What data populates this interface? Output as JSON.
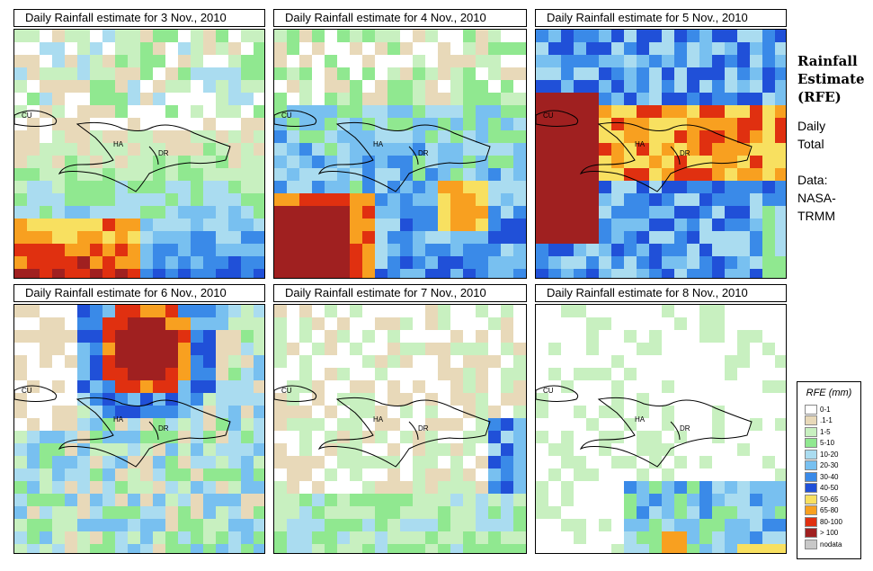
{
  "panels": [
    {
      "title": "Daily Rainfall estimate for  3 Nov., 2010",
      "pattern": "south"
    },
    {
      "title": "Daily Rainfall estimate for  4 Nov., 2010",
      "pattern": "southwest"
    },
    {
      "title": "Daily Rainfall estimate for  5 Nov., 2010",
      "pattern": "storm"
    },
    {
      "title": "Daily Rainfall estimate for  6 Nov., 2010",
      "pattern": "north"
    },
    {
      "title": "Daily Rainfall estimate for  7 Nov., 2010",
      "pattern": "light"
    },
    {
      "title": "Daily Rainfall estimate for  8 Nov., 2010",
      "pattern": "southbottom"
    }
  ],
  "map_labels": {
    "cuba": "CU",
    "haiti": "HA",
    "dr": "DR"
  },
  "sidebar": {
    "title_line1": "Rainfall",
    "title_line2": "Estimate",
    "title_line3": "(RFE)",
    "daily": "Daily",
    "total": "Total",
    "data_label": "Data:",
    "source1": "NASA-",
    "source2": "TRMM"
  },
  "legend": {
    "title": "RFE (mm)",
    "items": [
      {
        "label": "0-1",
        "color": "#ffffff"
      },
      {
        "label": ".1-1",
        "color": "#e8d9b9"
      },
      {
        "label": "1-5",
        "color": "#c8f0c0"
      },
      {
        "label": "5-10",
        "color": "#90e890"
      },
      {
        "label": "10-20",
        "color": "#aadcf0"
      },
      {
        "label": "20-30",
        "color": "#78c0f0"
      },
      {
        "label": "30-40",
        "color": "#3a8ae8"
      },
      {
        "label": "40-50",
        "color": "#2050d8"
      },
      {
        "label": "50-65",
        "color": "#f8e060"
      },
      {
        "label": "65-80",
        "color": "#f8a020"
      },
      {
        "label": "80-100",
        "color": "#e03010"
      },
      {
        "label": "> 100",
        "color": "#a02020"
      },
      {
        "label": "nodata",
        "color": "#c8c8c8"
      }
    ]
  }
}
